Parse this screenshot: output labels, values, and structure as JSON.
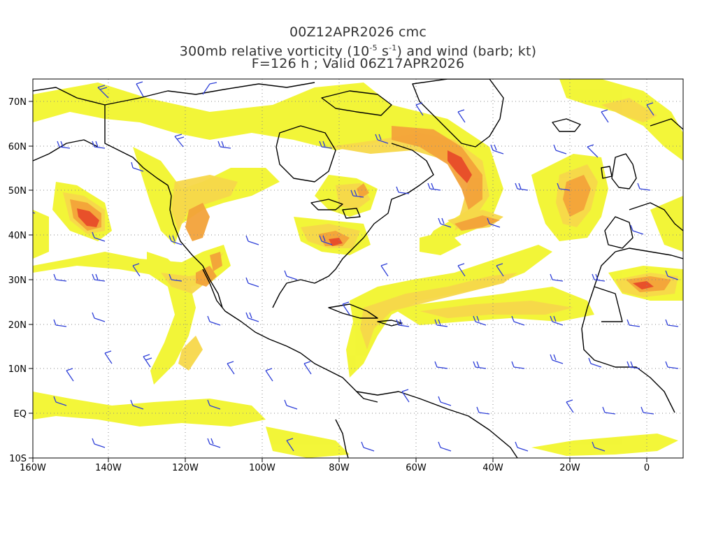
{
  "header": {
    "run": "00Z12APR2026 cmc",
    "field_prefix": "300mb relative vorticity (10",
    "field_exp1": "-5",
    "field_mid": " s",
    "field_exp2": "-1",
    "field_suffix": ") and wind (barb; kt)",
    "valid": "F=126 h ; Valid 06Z17APR2026"
  },
  "axes": {
    "lon_labels": [
      "160W",
      "140W",
      "120W",
      "100W",
      "80W",
      "60W",
      "40W",
      "20W",
      "0"
    ],
    "lat_labels": [
      "70N",
      "60N",
      "50N",
      "40N",
      "30N",
      "20N",
      "10N",
      "EQ",
      "10S"
    ]
  },
  "colors": {
    "shade_light": "#f2f52e",
    "shade_mid": "#f7d84a",
    "shade_high": "#f3a33a",
    "shade_max": "#e8502a",
    "barb": "#2e3fd8",
    "coast": "#000000",
    "grid": "#888888"
  }
}
